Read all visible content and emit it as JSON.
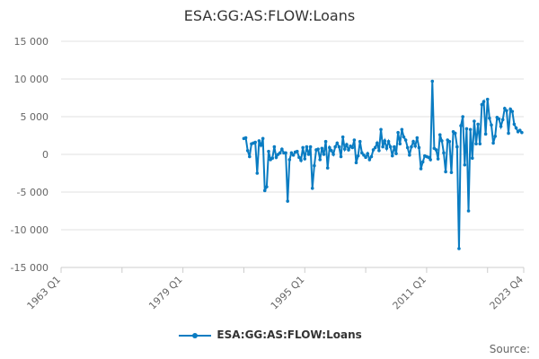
{
  "chart_data": {
    "type": "line",
    "title": "ESA:GG:AS:FLOW:Loans",
    "xlabel": "",
    "ylabel": "",
    "x_start": "1963 Q1",
    "x_end": "2023 Q4",
    "data_start": "1987 Q1",
    "frequency": "quarterly",
    "x_tick_labels": [
      "1963 Q1",
      "1979 Q1",
      "1995 Q1",
      "2011 Q1",
      "2023 Q4"
    ],
    "y_ticks": [
      15000,
      10000,
      5000,
      0,
      -5000,
      -10000,
      -15000
    ],
    "y_tick_labels": [
      "15 000",
      "10 000",
      "5 000",
      "0",
      "-5 000",
      "-10 000",
      "-15 000"
    ],
    "ylim": [
      -15000,
      15000
    ],
    "grid": "horizontal",
    "legend_placement": "bottom",
    "series": [
      {
        "name": "ESA:GG:AS:FLOW:Loans",
        "color": "#0a7cc2",
        "values": [
          2100,
          2200,
          500,
          -300,
          1400,
          1500,
          1600,
          -2500,
          1800,
          1200,
          2100,
          -4800,
          -4300,
          400,
          -700,
          -500,
          1000,
          -400,
          0,
          200,
          700,
          200,
          200,
          -6200,
          -700,
          200,
          -100,
          300,
          400,
          -400,
          -800,
          900,
          -600,
          1000,
          0,
          1000,
          -4500,
          -1500,
          600,
          700,
          -700,
          800,
          0,
          1700,
          -1800,
          900,
          500,
          0,
          1000,
          1500,
          1000,
          -300,
          2300,
          700,
          1300,
          600,
          1100,
          900,
          1900,
          -1100,
          -200,
          1700,
          200,
          -100,
          -400,
          100,
          -700,
          -300,
          600,
          900,
          1500,
          500,
          3300,
          1000,
          1800,
          800,
          1700,
          1000,
          -200,
          1000,
          100,
          2900,
          1400,
          3300,
          2300,
          1900,
          900,
          -100,
          1000,
          1700,
          1100,
          2200,
          900,
          -1900,
          -1000,
          -200,
          -300,
          -400,
          -700,
          9700,
          800,
          600,
          -600,
          2600,
          1800,
          200,
          -2300,
          1900,
          1700,
          -2400,
          3000,
          2800,
          1000,
          -12500,
          3800,
          5000,
          -1400,
          3400,
          -7500,
          3300,
          -500,
          4400,
          1400,
          4000,
          1400,
          6600,
          7000,
          2700,
          7300,
          4800,
          3900,
          1500,
          2400,
          4900,
          4700,
          3700,
          4600,
          6100,
          5800,
          2800,
          6000,
          5700,
          4000,
          3500,
          3000,
          3200,
          2900
        ]
      }
    ]
  },
  "legend": {
    "label": "ESA:GG:AS:FLOW:Loans"
  },
  "source": {
    "label": "Source:"
  }
}
